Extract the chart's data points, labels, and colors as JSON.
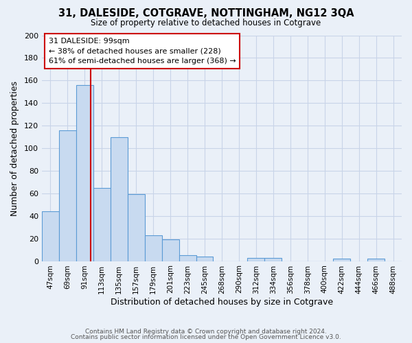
{
  "title": "31, DALESIDE, COTGRAVE, NOTTINGHAM, NG12 3QA",
  "subtitle": "Size of property relative to detached houses in Cotgrave",
  "xlabel": "Distribution of detached houses by size in Cotgrave",
  "ylabel": "Number of detached properties",
  "bar_labels": [
    "47sqm",
    "69sqm",
    "91sqm",
    "113sqm",
    "135sqm",
    "157sqm",
    "179sqm",
    "201sqm",
    "223sqm",
    "245sqm",
    "268sqm",
    "290sqm",
    "312sqm",
    "334sqm",
    "356sqm",
    "378sqm",
    "400sqm",
    "422sqm",
    "444sqm",
    "466sqm",
    "488sqm"
  ],
  "bar_values": [
    44,
    116,
    156,
    65,
    110,
    59,
    23,
    19,
    5,
    4,
    0,
    0,
    3,
    3,
    0,
    0,
    0,
    2,
    0,
    2,
    0
  ],
  "bar_color": "#c8daf0",
  "bar_edge_color": "#5b9bd5",
  "background_color": "#eaf0f8",
  "grid_color": "#d0d8e8",
  "vline_color": "#cc0000",
  "vline_position": 2.35,
  "annotation_line1": "31 DALESIDE: 99sqm",
  "annotation_line2": "← 38% of detached houses are smaller (228)",
  "annotation_line3": "61% of semi-detached houses are larger (368) →",
  "annotation_box_color": "#ffffff",
  "annotation_box_edge": "#cc0000",
  "ylim": [
    0,
    200
  ],
  "yticks": [
    0,
    20,
    40,
    60,
    80,
    100,
    120,
    140,
    160,
    180,
    200
  ],
  "footer_line1": "Contains HM Land Registry data © Crown copyright and database right 2024.",
  "footer_line2": "Contains public sector information licensed under the Open Government Licence v3.0."
}
